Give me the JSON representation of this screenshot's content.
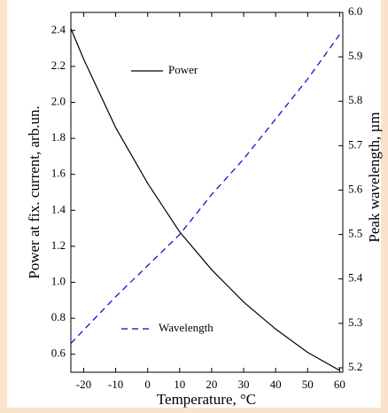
{
  "chart_data": {
    "type": "line",
    "x_label": "Temperature, °C",
    "y_label": "Power at fix. current, arb.un.",
    "y2_label": "Peak wavelength, µm",
    "x": [
      -24,
      -20,
      -10,
      0,
      10,
      20,
      30,
      40,
      50,
      60
    ],
    "series": [
      {
        "name": "Power",
        "color": "#000000",
        "linestyle": "solid",
        "values": [
          2.41,
          2.24,
          1.86,
          1.55,
          1.28,
          1.07,
          0.89,
          0.74,
          0.61,
          0.51
        ]
      },
      {
        "name": "Wavelength",
        "color": "#0000cc",
        "linestyle": "dashed",
        "axis": "y2",
        "values": [
          5.255,
          5.285,
          5.36,
          5.43,
          5.5,
          5.59,
          5.67,
          5.76,
          5.85,
          5.95
        ]
      }
    ],
    "xlim": [
      -24,
      61
    ],
    "xticks": [
      -20,
      -10,
      0,
      10,
      20,
      30,
      40,
      50,
      60
    ],
    "ylim": [
      0.5,
      2.5
    ],
    "yticks": [
      0.6,
      0.8,
      1.0,
      1.2,
      1.4,
      1.6,
      1.8,
      2.0,
      2.2,
      2.4
    ],
    "y2lim": [
      5.19,
      6.0
    ],
    "y2ticks": [
      5.2,
      5.3,
      5.4,
      5.5,
      5.6,
      5.7,
      5.8,
      5.9,
      6.0
    ],
    "grid": false
  }
}
